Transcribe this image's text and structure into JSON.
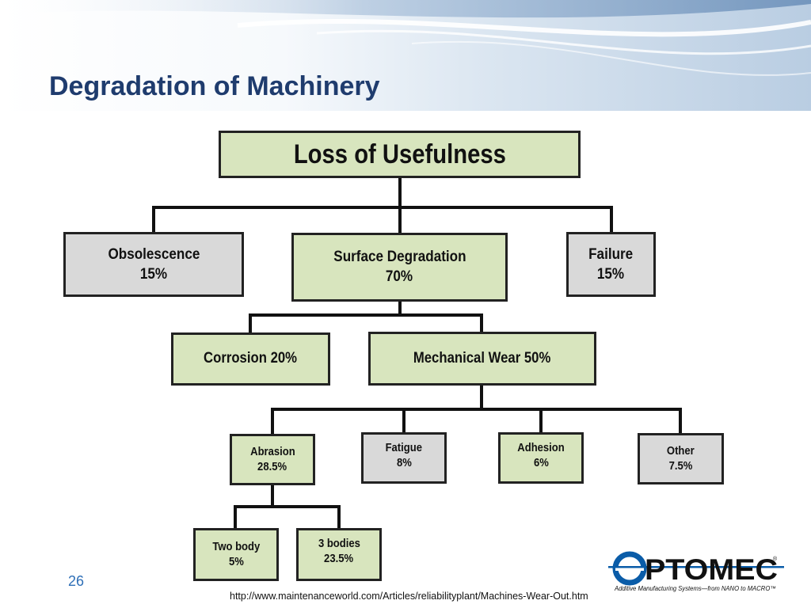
{
  "slide": {
    "title": "Degradation of Machinery",
    "page_number": "26",
    "source_url": "http://www.maintenanceworld.com/Articles/reliabilityplant/Machines-Wear-Out.htm",
    "logo": {
      "name": "OPTOMEC",
      "tagline": "Additive Manufacturing Systems—from NANO to MACRO™"
    }
  },
  "diagram": {
    "root": {
      "label": "Loss of Usefulness"
    },
    "obsolescence": {
      "name": "Obsolescence",
      "value": "15%"
    },
    "surface_degradation": {
      "name": "Surface Degradation",
      "value": "70%"
    },
    "failure": {
      "name": "Failure",
      "value": "15%"
    },
    "corrosion": {
      "label": "Corrosion 20%"
    },
    "mechanical_wear": {
      "label": "Mechanical Wear 50%"
    },
    "abrasion": {
      "name": "Abrasion",
      "value": "28.5%"
    },
    "fatigue": {
      "name": "Fatigue",
      "value": "8%"
    },
    "adhesion": {
      "name": "Adhesion",
      "value": "6%"
    },
    "other": {
      "name": "Other",
      "value": "7.5%"
    },
    "two_body": {
      "name": "Two body",
      "value": "5%"
    },
    "three_bodies": {
      "name": "3 bodies",
      "value": "23.5%"
    }
  },
  "colors": {
    "title": "#1f3c6e",
    "box_green": "#d8e5be",
    "box_gray": "#d9d9d9",
    "connector": "#111111",
    "page_number": "#2e6fb7",
    "logo_blue": "#0a5ca8"
  }
}
